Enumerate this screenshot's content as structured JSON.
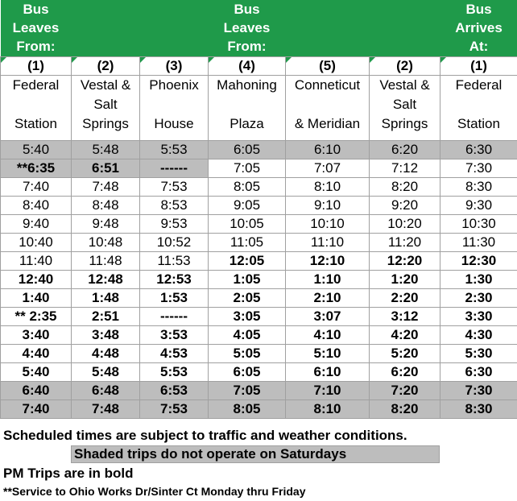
{
  "header": {
    "col1": [
      "Bus",
      "Leaves",
      "From:"
    ],
    "col4": [
      "Bus",
      "Leaves",
      "From:"
    ],
    "col7": [
      "Bus",
      "Arrives",
      "At:"
    ]
  },
  "colors": {
    "header_green": "#1f9a4a",
    "shade_gray": "#bdbdbd"
  },
  "stops": [
    {
      "num": "(1)",
      "lines": [
        "Federal",
        "",
        "Station"
      ]
    },
    {
      "num": "(2)",
      "lines": [
        "Vestal &",
        "Salt",
        "Springs"
      ]
    },
    {
      "num": "(3)",
      "lines": [
        "Phoenix",
        "",
        "House"
      ]
    },
    {
      "num": "(4)",
      "lines": [
        "Mahoning",
        "",
        "Plaza"
      ]
    },
    {
      "num": "(5)",
      "lines": [
        "Conneticut",
        "",
        "& Meridian"
      ]
    },
    {
      "num": "(2)",
      "lines": [
        "Vestal &",
        "Salt",
        "Springs"
      ]
    },
    {
      "num": "(1)",
      "lines": [
        "Federal",
        "",
        "Station"
      ]
    }
  ],
  "rows": [
    {
      "cells": [
        "5:40",
        "5:48",
        "5:53",
        "6:05",
        "6:10",
        "6:20",
        "6:30"
      ],
      "bold": false,
      "shaded": true
    },
    {
      "cells": [
        "**6:35",
        "6:51",
        "------",
        "7:05",
        "7:07",
        "7:12",
        "7:30"
      ],
      "bold": false,
      "shaded": false,
      "shaded_cols": [
        0,
        1,
        2
      ],
      "bold_cols": [
        0,
        1,
        2
      ]
    },
    {
      "cells": [
        "7:40",
        "7:48",
        "7:53",
        "8:05",
        "8:10",
        "8:20",
        "8:30"
      ],
      "bold": false,
      "shaded": false
    },
    {
      "cells": [
        "8:40",
        "8:48",
        "8:53",
        "9:05",
        "9:10",
        "9:20",
        "9:30"
      ],
      "bold": false,
      "shaded": false
    },
    {
      "cells": [
        "9:40",
        "9:48",
        "9:53",
        "10:05",
        "10:10",
        "10:20",
        "10:30"
      ],
      "bold": false,
      "shaded": false
    },
    {
      "cells": [
        "10:40",
        "10:48",
        "10:52",
        "11:05",
        "11:10",
        "11:20",
        "11:30"
      ],
      "bold": false,
      "shaded": false
    },
    {
      "cells": [
        "11:40",
        "11:48",
        "11:53",
        "12:05",
        "12:10",
        "12:20",
        "12:30"
      ],
      "bold": false,
      "shaded": false,
      "bold_cols": [
        3,
        4,
        5,
        6
      ]
    },
    {
      "cells": [
        "12:40",
        "12:48",
        "12:53",
        "1:05",
        "1:10",
        "1:20",
        "1:30"
      ],
      "bold": true,
      "shaded": false
    },
    {
      "cells": [
        "1:40",
        "1:48",
        "1:53",
        "2:05",
        "2:10",
        "2:20",
        "2:30"
      ],
      "bold": true,
      "shaded": false
    },
    {
      "cells": [
        "** 2:35",
        "2:51",
        "------",
        "3:05",
        "3:07",
        "3:12",
        "3:30"
      ],
      "bold": true,
      "shaded": false
    },
    {
      "cells": [
        "3:40",
        "3:48",
        "3:53",
        "4:05",
        "4:10",
        "4:20",
        "4:30"
      ],
      "bold": true,
      "shaded": false
    },
    {
      "cells": [
        "4:40",
        "4:48",
        "4:53",
        "5:05",
        "5:10",
        "5:20",
        "5:30"
      ],
      "bold": true,
      "shaded": false
    },
    {
      "cells": [
        "5:40",
        "5:48",
        "5:53",
        "6:05",
        "6:10",
        "6:20",
        "6:30"
      ],
      "bold": true,
      "shaded": false
    },
    {
      "cells": [
        "6:40",
        "6:48",
        "6:53",
        "7:05",
        "7:10",
        "7:20",
        "7:30"
      ],
      "bold": true,
      "shaded": true
    },
    {
      "cells": [
        "7:40",
        "7:48",
        "7:53",
        "8:05",
        "8:10",
        "8:20",
        "8:30"
      ],
      "bold": true,
      "shaded": true
    }
  ],
  "notes": {
    "traffic": "Scheduled times are subject to traffic and weather conditions.",
    "saturday": "Shaded trips do not operate on Saturdays",
    "pm": "PM Trips are in bold",
    "service": "**Service to Ohio Works Dr/Sinter Ct Monday thru Friday"
  }
}
